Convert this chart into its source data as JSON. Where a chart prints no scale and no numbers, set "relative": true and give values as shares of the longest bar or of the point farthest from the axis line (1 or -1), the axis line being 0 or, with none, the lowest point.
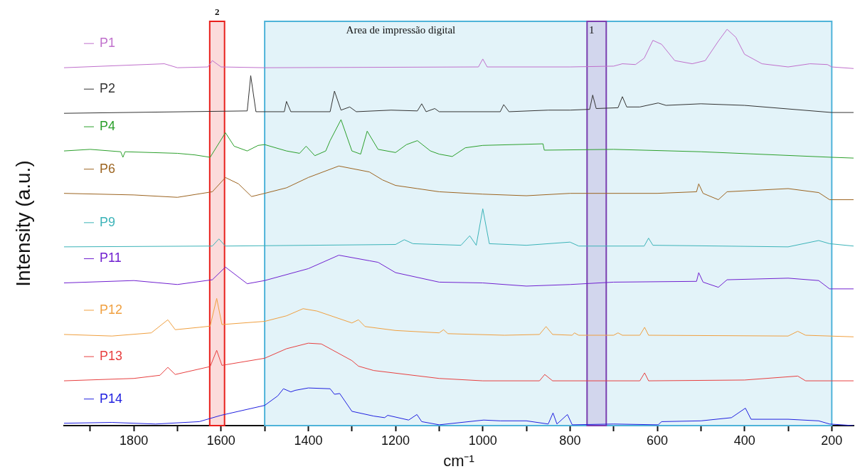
{
  "chart_data": {
    "type": "line",
    "xlabel": "cm⁻¹",
    "ylabel": "Intensity (a.u.)",
    "relative": true,
    "marker": "none",
    "tick_labels": "x",
    "legend": "left",
    "xlim": [
      1960,
      150
    ],
    "xticks": [
      {
        "value": 1900,
        "label": null
      },
      1800,
      {
        "value": 1700,
        "label": null
      },
      1600,
      {
        "value": 1500,
        "label": null
      },
      1400,
      {
        "value": 1300,
        "label": null
      },
      1200,
      {
        "value": 1100,
        "label": null
      },
      1000,
      {
        "value": 900,
        "label": null
      },
      800,
      {
        "value": 700,
        "label": null
      },
      600,
      {
        "value": 500,
        "label": null
      },
      400,
      {
        "value": 300,
        "label": null
      },
      200
    ],
    "bands": [
      {
        "axis": "x",
        "from": 1500,
        "to": 200,
        "label": "Area de impressão digital",
        "color": "#4fb3d9"
      },
      {
        "axis": "x",
        "from": 1626,
        "to": 1592,
        "label": "2",
        "color": "#e8201c"
      },
      {
        "axis": "x",
        "from": 761,
        "to": 717,
        "label": "1",
        "color": "#7a3fb0"
      }
    ],
    "series": [
      {
        "name": "P1",
        "color": "#c070cc",
        "x": [
          1960,
          1730,
          1700,
          1630,
          1620,
          1600,
          1500,
          1010,
          1000,
          990,
          800,
          700,
          680,
          650,
          630,
          610,
          590,
          560,
          520,
          490,
          460,
          440,
          420,
          400,
          360,
          300,
          250,
          210,
          200,
          150
        ],
        "values": [
          0.903,
          0.913,
          0.903,
          0.905,
          0.921,
          0.905,
          0.903,
          0.905,
          0.925,
          0.905,
          0.905,
          0.907,
          0.913,
          0.911,
          0.927,
          0.972,
          0.962,
          0.921,
          0.913,
          0.921,
          0.97,
          1.0,
          0.98,
          0.937,
          0.913,
          0.905,
          0.913,
          0.911,
          0.905,
          0.901
        ]
      },
      {
        "name": "P2",
        "color": "#333333",
        "x": [
          1960,
          1540,
          1532,
          1520,
          1455,
          1450,
          1440,
          1350,
          1340,
          1325,
          1305,
          1290,
          1210,
          1150,
          1140,
          1130,
          1110,
          1100,
          960,
          952,
          940,
          850,
          800,
          755,
          748,
          740,
          690,
          680,
          670,
          640,
          598,
          580,
          500,
          400,
          200,
          150
        ],
        "values": [
          0.788,
          0.794,
          0.883,
          0.792,
          0.792,
          0.818,
          0.792,
          0.792,
          0.844,
          0.796,
          0.804,
          0.792,
          0.796,
          0.794,
          0.812,
          0.792,
          0.8,
          0.792,
          0.792,
          0.81,
          0.792,
          0.796,
          0.796,
          0.798,
          0.834,
          0.8,
          0.802,
          0.83,
          0.804,
          0.804,
          0.814,
          0.808,
          0.812,
          0.808,
          0.79,
          0.79
        ]
      },
      {
        "name": "P4",
        "color": "#2ca02c",
        "x": [
          1960,
          1900,
          1830,
          1825,
          1820,
          1700,
          1660,
          1625,
          1590,
          1570,
          1540,
          1515,
          1500,
          1450,
          1420,
          1405,
          1385,
          1360,
          1350,
          1325,
          1300,
          1280,
          1265,
          1240,
          1200,
          1175,
          1150,
          1120,
          1100,
          1070,
          1040,
          1000,
          862,
          859,
          700,
          500,
          200,
          150
        ],
        "values": [
          0.693,
          0.697,
          0.691,
          0.677,
          0.691,
          0.687,
          0.683,
          0.677,
          0.739,
          0.705,
          0.693,
          0.707,
          0.709,
          0.693,
          0.687,
          0.705,
          0.681,
          0.693,
          0.719,
          0.772,
          0.693,
          0.685,
          0.743,
          0.697,
          0.689,
          0.709,
          0.719,
          0.693,
          0.685,
          0.679,
          0.701,
          0.707,
          0.711,
          0.695,
          0.697,
          0.691,
          0.677,
          0.675
        ]
      },
      {
        "name": "P6",
        "color": "#9c6420",
        "x": [
          1960,
          1800,
          1700,
          1620,
          1590,
          1560,
          1530,
          1500,
          1450,
          1400,
          1330,
          1260,
          1230,
          1200,
          1150,
          1100,
          1000,
          900,
          800,
          600,
          510,
          505,
          495,
          460,
          440,
          300,
          230,
          205,
          150
        ],
        "values": [
          0.586,
          0.582,
          0.576,
          0.59,
          0.626,
          0.61,
          0.578,
          0.586,
          0.6,
          0.626,
          0.655,
          0.64,
          0.62,
          0.606,
          0.598,
          0.59,
          0.584,
          0.58,
          0.586,
          0.586,
          0.59,
          0.61,
          0.586,
          0.57,
          0.59,
          0.598,
          0.588,
          0.57,
          0.57
        ]
      },
      {
        "name": "P9",
        "color": "#3bb3b8",
        "x": [
          1960,
          1620,
          1605,
          1590,
          1200,
          1180,
          1160,
          1050,
          1030,
          1015,
          1000,
          985,
          900,
          800,
          780,
          630,
          620,
          610,
          300,
          230,
          205,
          150
        ],
        "values": [
          0.451,
          0.453,
          0.471,
          0.453,
          0.457,
          0.469,
          0.459,
          0.455,
          0.479,
          0.455,
          0.547,
          0.459,
          0.455,
          0.463,
          0.453,
          0.453,
          0.473,
          0.455,
          0.451,
          0.467,
          0.459,
          0.453
        ]
      },
      {
        "name": "P11",
        "color": "#7020d0",
        "x": [
          1960,
          1800,
          1700,
          1620,
          1590,
          1540,
          1500,
          1400,
          1330,
          1260,
          1240,
          1200,
          1100,
          1000,
          900,
          800,
          700,
          510,
          505,
          495,
          460,
          440,
          300,
          230,
          205,
          150
        ],
        "values": [
          0.36,
          0.366,
          0.356,
          0.368,
          0.4,
          0.358,
          0.366,
          0.396,
          0.43,
          0.416,
          0.412,
          0.386,
          0.362,
          0.36,
          0.352,
          0.356,
          0.362,
          0.364,
          0.386,
          0.362,
          0.349,
          0.368,
          0.372,
          0.366,
          0.345,
          0.345
        ]
      },
      {
        "name": "P12",
        "color": "#f0a040",
        "x": [
          1960,
          1850,
          1760,
          1722,
          1705,
          1650,
          1625,
          1610,
          1598,
          1500,
          1450,
          1412,
          1380,
          1300,
          1285,
          1270,
          1200,
          1100,
          1090,
          1080,
          950,
          870,
          855,
          840,
          795,
          790,
          780,
          700,
          690,
          680,
          640,
          629,
          620,
          300,
          278,
          260,
          150
        ],
        "values": [
          0.23,
          0.226,
          0.234,
          0.267,
          0.242,
          0.248,
          0.251,
          0.321,
          0.255,
          0.263,
          0.277,
          0.295,
          0.289,
          0.259,
          0.267,
          0.25,
          0.24,
          0.234,
          0.242,
          0.232,
          0.228,
          0.23,
          0.25,
          0.23,
          0.228,
          0.234,
          0.228,
          0.228,
          0.234,
          0.228,
          0.228,
          0.248,
          0.228,
          0.226,
          0.238,
          0.228,
          0.224
        ]
      },
      {
        "name": "P13",
        "color": "#e84040",
        "x": [
          1960,
          1800,
          1740,
          1722,
          1705,
          1625,
          1610,
          1598,
          1500,
          1450,
          1400,
          1370,
          1300,
          1285,
          1250,
          1100,
          1000,
          870,
          858,
          840,
          640,
          629,
          620,
          400,
          278,
          260,
          150
        ],
        "values": [
          0.113,
          0.119,
          0.127,
          0.147,
          0.129,
          0.149,
          0.19,
          0.152,
          0.17,
          0.194,
          0.208,
          0.206,
          0.164,
          0.15,
          0.139,
          0.119,
          0.113,
          0.113,
          0.129,
          0.113,
          0.113,
          0.133,
          0.113,
          0.115,
          0.125,
          0.113,
          0.113
        ]
      },
      {
        "name": "P14",
        "color": "#2020e0",
        "x": [
          1960,
          1850,
          1750,
          1650,
          1600,
          1500,
          1470,
          1457,
          1440,
          1430,
          1400,
          1350,
          1340,
          1328,
          1300,
          1250,
          1225,
          1218,
          1170,
          1151,
          1140,
          1100,
          998,
          960,
          900,
          850,
          839,
          830,
          806,
          795,
          700,
          598,
          590,
          500,
          430,
          398,
          385,
          300,
          230,
          205,
          150
        ],
        "values": [
          0.006,
          0.008,
          0.004,
          0.01,
          0.026,
          0.051,
          0.075,
          0.093,
          0.085,
          0.089,
          0.095,
          0.093,
          0.079,
          0.081,
          0.036,
          0.024,
          0.02,
          0.026,
          0.014,
          0.028,
          0.01,
          0.002,
          0.014,
          0.012,
          0.012,
          0.004,
          0.032,
          0.004,
          0.028,
          0.002,
          0.004,
          0.002,
          0.01,
          0.012,
          0.02,
          0.044,
          0.016,
          0.016,
          0.012,
          0.004,
          0
        ]
      }
    ]
  }
}
